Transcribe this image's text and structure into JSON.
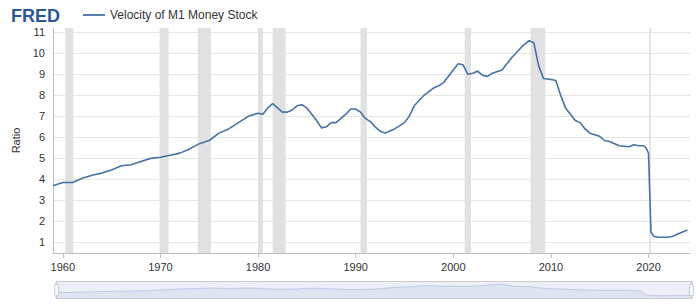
{
  "chart_data": {
    "type": "line",
    "logo": "FRED",
    "ylabel": "Ratio",
    "grid": true,
    "legend": "top-left",
    "xlim": [
      1959,
      2024.25
    ],
    "xticks": [
      1960,
      1970,
      1980,
      1990,
      2000,
      2010,
      2020
    ],
    "ylim": [
      0.5,
      11.2
    ],
    "yticks": [
      1,
      2,
      3,
      4,
      5,
      6,
      7,
      8,
      9,
      10,
      11
    ],
    "recessions": [
      [
        1960.25,
        1961.08
      ],
      [
        1969.92,
        1970.83
      ],
      [
        1973.83,
        1975.17
      ],
      [
        1980.0,
        1980.5
      ],
      [
        1981.5,
        1982.83
      ],
      [
        1990.5,
        1991.17
      ],
      [
        2001.17,
        2001.83
      ],
      [
        2007.92,
        2009.42
      ],
      [
        2020.08,
        2020.25
      ]
    ],
    "x": [
      1959,
      1960,
      1961,
      1962,
      1963,
      1964,
      1965,
      1966,
      1967,
      1968,
      1969,
      1970,
      1971,
      1972,
      1973,
      1974,
      1975,
      1976,
      1977,
      1978,
      1979,
      1980,
      1980.5,
      1981,
      1981.5,
      1982,
      1982.5,
      1983,
      1983.5,
      1984,
      1984.5,
      1985,
      1985.5,
      1986,
      1986.5,
      1987,
      1987.5,
      1988,
      1989,
      1989.5,
      1990,
      1990.5,
      1991,
      1991.5,
      1992,
      1992.5,
      1993,
      1993.5,
      1994,
      1995,
      1995.5,
      1996,
      1997,
      1998,
      1998.5,
      1999,
      2000,
      2000.5,
      2001,
      2001.5,
      2002,
      2002.5,
      2003,
      2003.5,
      2004,
      2005,
      2006,
      2007,
      2007.75,
      2008.25,
      2008.75,
      2009.25,
      2010,
      2010.5,
      2011,
      2011.5,
      2012,
      2012.5,
      2013,
      2013.5,
      2014,
      2015,
      2015.5,
      2016,
      2017,
      2018,
      2018.5,
      2019,
      2019.5,
      2019.75,
      2020,
      2020.25,
      2020.5,
      2021,
      2022,
      2022.5,
      2023,
      2023.5,
      2024
    ],
    "series": [
      {
        "name": "Velocity of M1 Money Stock",
        "color": "#4572a7",
        "values": [
          3.7,
          3.85,
          3.85,
          4.05,
          4.2,
          4.3,
          4.45,
          4.65,
          4.7,
          4.85,
          5.0,
          5.05,
          5.15,
          5.25,
          5.45,
          5.7,
          5.85,
          6.2,
          6.4,
          6.7,
          7.0,
          7.15,
          7.1,
          7.4,
          7.6,
          7.4,
          7.2,
          7.2,
          7.3,
          7.5,
          7.55,
          7.4,
          7.1,
          6.8,
          6.45,
          6.5,
          6.7,
          6.7,
          7.1,
          7.35,
          7.35,
          7.2,
          6.9,
          6.75,
          6.5,
          6.3,
          6.2,
          6.3,
          6.4,
          6.7,
          7.0,
          7.5,
          8.0,
          8.35,
          8.45,
          8.6,
          9.2,
          9.5,
          9.45,
          9.0,
          9.05,
          9.15,
          8.95,
          8.9,
          9.05,
          9.2,
          9.8,
          10.3,
          10.6,
          10.5,
          9.4,
          8.8,
          8.75,
          8.7,
          8.0,
          7.4,
          7.1,
          6.8,
          6.7,
          6.4,
          6.2,
          6.05,
          5.85,
          5.8,
          5.6,
          5.55,
          5.65,
          5.6,
          5.6,
          5.5,
          5.25,
          1.5,
          1.3,
          1.25,
          1.25,
          1.3,
          1.4,
          1.5,
          1.6
        ]
      }
    ]
  }
}
